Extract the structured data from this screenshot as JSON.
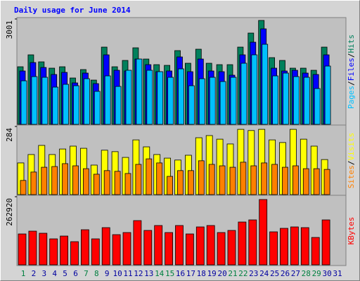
{
  "title": "Daily usage for June 2014",
  "separator": "/",
  "chart_data": [
    {
      "type": "bar",
      "ylim": [
        0,
        3001
      ],
      "yticks": [
        3001
      ],
      "series": [
        {
          "name": "Hits",
          "color": "#00805c",
          "values": [
            1640,
            1980,
            1780,
            1600,
            1640,
            1320,
            1560,
            1260,
            2200,
            1640,
            1820,
            2180,
            1860,
            1700,
            1680,
            2100,
            1740,
            2140,
            1740,
            1700,
            1700,
            2200,
            2600,
            2960,
            1900,
            1820,
            1600,
            1600,
            1540,
            2200,
            0
          ]
        },
        {
          "name": "Files",
          "color": "#0000ff",
          "values": [
            1520,
            1760,
            1620,
            1420,
            1480,
            1180,
            1460,
            1160,
            1980,
            1540,
            1520,
            1860,
            1700,
            1500,
            1520,
            1920,
            1500,
            1860,
            1520,
            1500,
            1400,
            1980,
            2340,
            2720,
            1600,
            1520,
            1540,
            1460,
            1420,
            1980,
            0
          ]
        },
        {
          "name": "Pages",
          "color": "#00c0ff",
          "values": [
            1240,
            1360,
            1340,
            1060,
            1140,
            1100,
            1300,
            940,
            1380,
            1080,
            1540,
            1860,
            1540,
            1500,
            1340,
            1580,
            1100,
            1300,
            1340,
            1220,
            1340,
            1740,
            1980,
            2280,
            1380,
            1460,
            1360,
            1340,
            1020,
            1660,
            0
          ]
        }
      ]
    },
    {
      "type": "bar",
      "ylim": [
        0,
        284
      ],
      "yticks": [
        284
      ],
      "series": [
        {
          "name": "Visits",
          "color": "#ffff00",
          "values": [
            132,
            167,
            205,
            167,
            190,
            202,
            193,
            123,
            185,
            179,
            155,
            228,
            199,
            167,
            152,
            144,
            164,
            237,
            246,
            231,
            211,
            272,
            267,
            272,
            228,
            217,
            272,
            231,
            202,
            146,
            0
          ]
        },
        {
          "name": "Sites",
          "color": "#ff8000",
          "values": [
            59,
            94,
            114,
            117,
            129,
            120,
            108,
            85,
            100,
            97,
            88,
            126,
            149,
            132,
            76,
            100,
            100,
            141,
            126,
            120,
            114,
            135,
            120,
            132,
            126,
            114,
            120,
            108,
            108,
            105,
            0
          ]
        }
      ]
    },
    {
      "type": "bar",
      "ylim": [
        0,
        262920
      ],
      "yticks": [
        262920
      ],
      "categories": [
        1,
        2,
        3,
        4,
        5,
        6,
        7,
        8,
        9,
        10,
        11,
        12,
        13,
        14,
        15,
        16,
        17,
        18,
        19,
        20,
        21,
        22,
        23,
        24,
        25,
        26,
        27,
        28,
        29,
        30,
        31
      ],
      "category_colors": [
        "#008040",
        "#0000a0",
        "#0000a0",
        "#0000a0",
        "#0000a0",
        "#0000a0",
        "#008040",
        "#008040",
        "#0000a0",
        "#0000a0",
        "#0000a0",
        "#0000a0",
        "#0000a0",
        "#008040",
        "#008040",
        "#0000a0",
        "#0000a0",
        "#0000a0",
        "#0000a0",
        "#0000a0",
        "#008040",
        "#008040",
        "#0000a0",
        "#0000a0",
        "#0000a0",
        "#0000a0",
        "#0000a0",
        "#008040",
        "#008040",
        "#0000a0",
        "#0000a0"
      ],
      "series": [
        {
          "name": "KBytes",
          "color": "#ff0000",
          "values": [
            119240,
            130080,
            121950,
            100270,
            111110,
            89430,
            135500,
            100270,
            143630,
            116530,
            124660,
            170730,
            132790,
            151760,
            124660,
            151760,
            119240,
            146340,
            151760,
            124660,
            132790,
            165310,
            173440,
            252030,
            127370,
            140920,
            146340,
            143630,
            105690,
            173440,
            0
          ]
        }
      ]
    }
  ]
}
